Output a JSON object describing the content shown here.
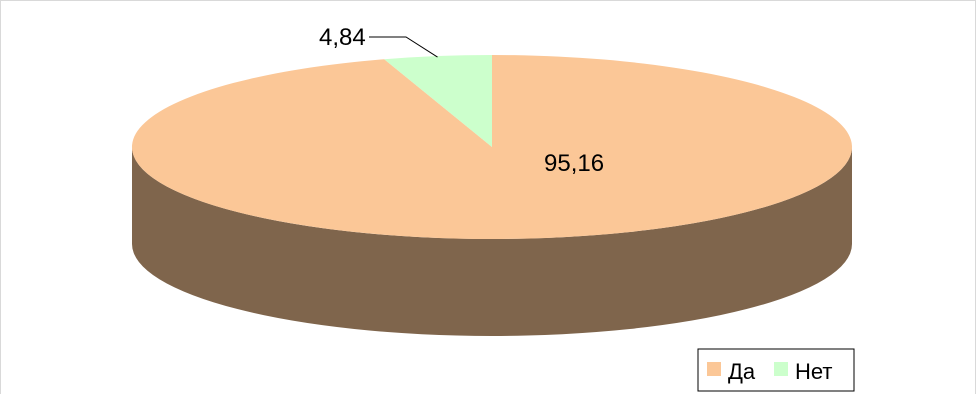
{
  "chart_data": {
    "type": "pie",
    "style": "3d",
    "categories": [
      "Да",
      "Нет"
    ],
    "values": [
      95.16,
      4.84
    ],
    "value_labels": [
      "95,16",
      "4,84"
    ],
    "colors": {
      "Да": "#FBC797",
      "Нет": "#CCFFCC",
      "side": "#7F654C",
      "leader_line": "#000000",
      "legend_border": "#000000"
    },
    "legend": {
      "placement": "bottom-right",
      "entries": [
        "Да",
        "Нет"
      ]
    },
    "title": "",
    "xlabel": "",
    "ylabel": ""
  }
}
